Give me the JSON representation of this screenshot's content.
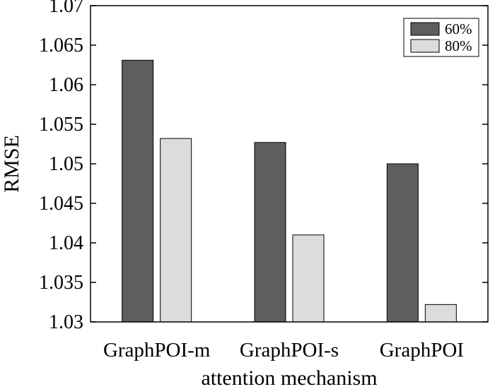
{
  "chart_data": {
    "type": "bar",
    "title": "",
    "xlabel": "attention mechanism",
    "ylabel": "RMSE",
    "categories": [
      "GraphPOI-m",
      "GraphPOI-s",
      "GraphPOI"
    ],
    "series": [
      {
        "name": "60%",
        "values": [
          1.0631,
          1.0527,
          1.05
        ],
        "color": "#5e5e5e"
      },
      {
        "name": "80%",
        "values": [
          1.0532,
          1.041,
          1.0322
        ],
        "color": "#dcdcdc"
      }
    ],
    "ylim": [
      1.03,
      1.07
    ],
    "yticks": [
      "1.03",
      "1.035",
      "1.04",
      "1.045",
      "1.05",
      "1.055",
      "1.06",
      "1.065",
      "1.07"
    ],
    "legend_position": "top-right",
    "grid": false
  }
}
